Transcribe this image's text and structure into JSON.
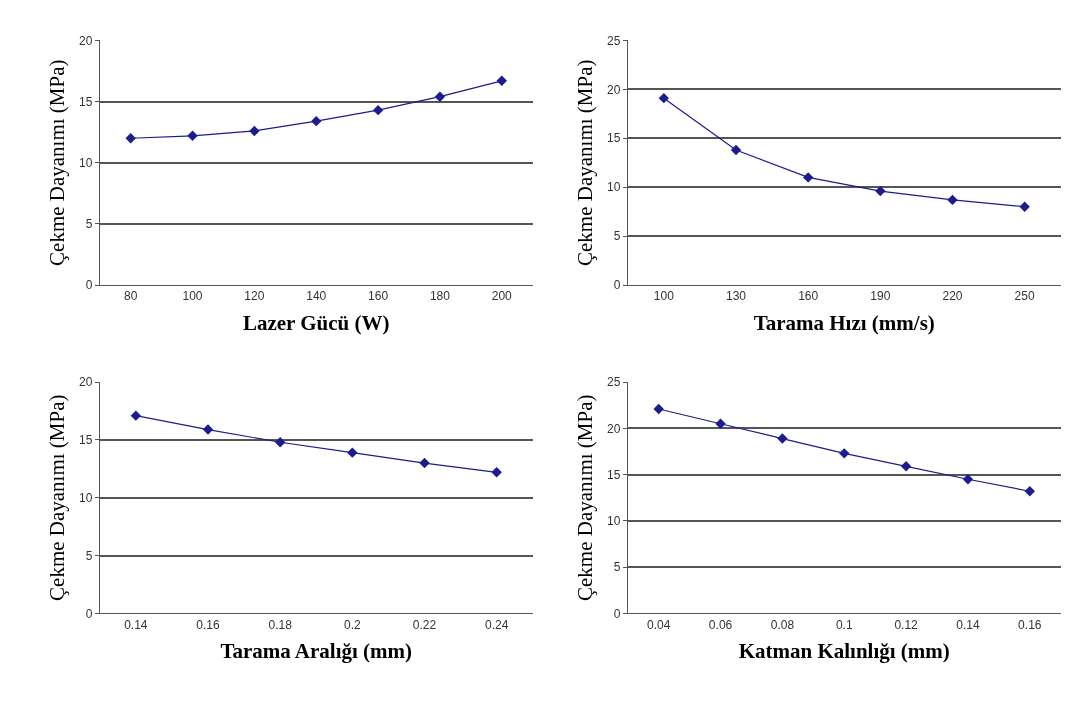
{
  "chart_data": [
    {
      "type": "line",
      "xlabel": "Lazer Gücü (W)",
      "ylabel": "Çekme Dayanımı (MPa)",
      "categories": [
        "80",
        "100",
        "120",
        "140",
        "160",
        "180",
        "200"
      ],
      "series": [
        {
          "color": "#1c1c8c",
          "values": [
            12.0,
            12.2,
            12.6,
            13.4,
            14.3,
            15.4,
            16.7
          ]
        }
      ],
      "ylim": [
        0,
        20
      ],
      "yticks": [
        0,
        5,
        10,
        15,
        20
      ],
      "grid": "y",
      "marker": "diamond"
    },
    {
      "type": "line",
      "xlabel": "Tarama Hızı (mm/s)",
      "ylabel": "Çekme Dayanımı (MPa)",
      "categories": [
        "100",
        "130",
        "160",
        "190",
        "220",
        "250"
      ],
      "series": [
        {
          "color": "#1c1c8c",
          "values": [
            19.1,
            13.8,
            11.0,
            9.6,
            8.7,
            8.0
          ]
        }
      ],
      "ylim": [
        0,
        25
      ],
      "yticks": [
        0,
        5,
        10,
        15,
        20,
        25
      ],
      "grid": "y",
      "marker": "diamond"
    },
    {
      "type": "line",
      "xlabel": "Tarama Aralığı (mm)",
      "ylabel": "Çekme Dayanımı (MPa)",
      "categories": [
        "0.14",
        "0.16",
        "0.18",
        "0.2",
        "0.22",
        "0.24"
      ],
      "series": [
        {
          "color": "#1c1c8c",
          "values": [
            17.1,
            15.9,
            14.8,
            13.9,
            13.0,
            12.2
          ]
        }
      ],
      "ylim": [
        0,
        20
      ],
      "yticks": [
        0,
        5,
        10,
        15,
        20
      ],
      "grid": "y",
      "marker": "diamond"
    },
    {
      "type": "line",
      "xlabel": "Katman Kalınlığı (mm)",
      "ylabel": "Çekme Dayanımı (MPa)",
      "categories": [
        "0.04",
        "0.06",
        "0.08",
        "0.1",
        "0.12",
        "0.14",
        "0.16"
      ],
      "series": [
        {
          "color": "#1c1c8c",
          "values": [
            22.1,
            20.5,
            18.9,
            17.3,
            15.9,
            14.5,
            13.2
          ]
        }
      ],
      "ylim": [
        0,
        25
      ],
      "yticks": [
        0,
        5,
        10,
        15,
        20,
        25
      ],
      "grid": "y",
      "marker": "diamond"
    }
  ]
}
